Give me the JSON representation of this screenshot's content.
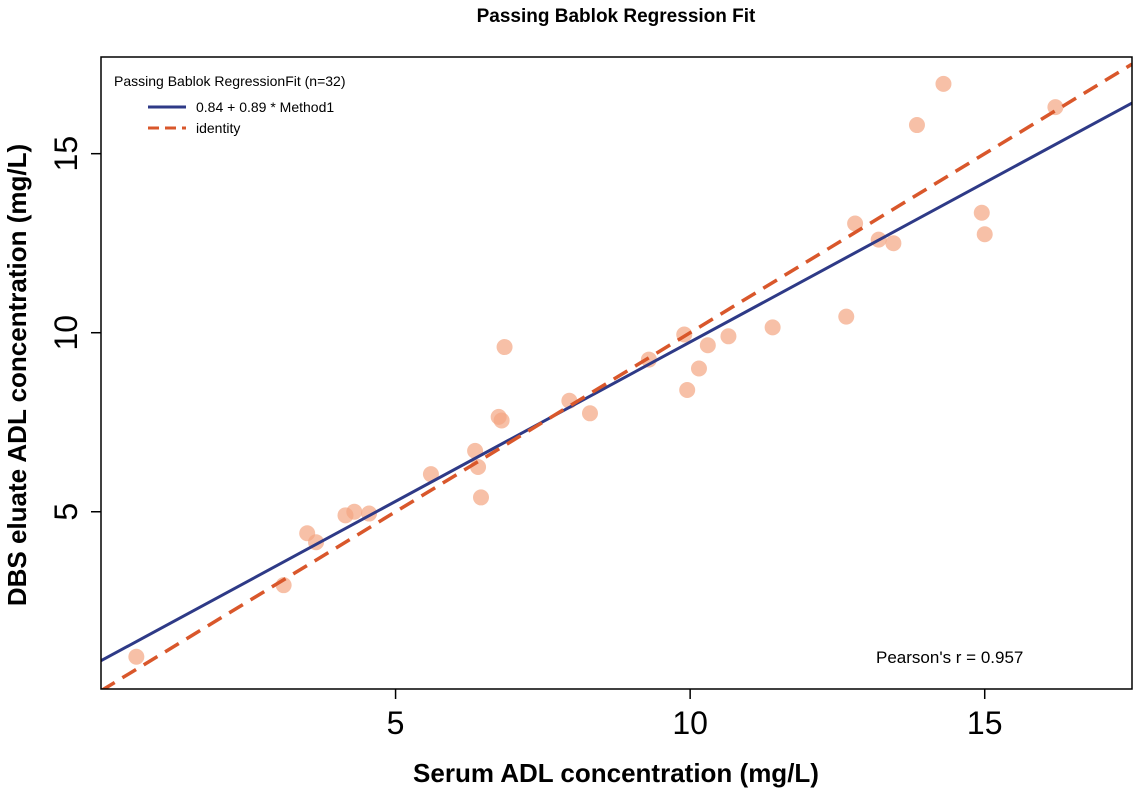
{
  "chart_data": {
    "type": "scatter",
    "title": "Passing Bablok Regression Fit",
    "xlabel": "Serum ADL concentration (mg/L)",
    "ylabel": "DBS eluate ADL concentration (mg/L)",
    "xlim": [
      0,
      17.5
    ],
    "ylim": [
      0.05,
      17.7
    ],
    "xticks": [
      5,
      10,
      15
    ],
    "yticks": [
      5,
      10,
      15
    ],
    "xtick_labels": [
      "5",
      "10",
      "15"
    ],
    "ytick_labels": [
      "5",
      "10",
      "15"
    ],
    "legend": {
      "title": "Passing Bablok RegressionFit (n=32)",
      "position": "top-left",
      "entries": [
        {
          "label": "0.84 + 0.89 * Method1",
          "color": "#2e3a87",
          "style": "solid"
        },
        {
          "label": "identity",
          "color": "#d9572b",
          "style": "dashed"
        }
      ]
    },
    "annotation": "Pearson's r = 0.957",
    "point_color": "#f4a582",
    "lines": {
      "fit": {
        "intercept": 0.84,
        "slope": 0.89
      },
      "identity": {
        "intercept": 0,
        "slope": 1
      }
    },
    "points": [
      {
        "x": 0.6,
        "y": 0.95
      },
      {
        "x": 3.1,
        "y": 2.95
      },
      {
        "x": 3.5,
        "y": 4.4
      },
      {
        "x": 3.65,
        "y": 4.15
      },
      {
        "x": 4.15,
        "y": 4.9
      },
      {
        "x": 4.3,
        "y": 5.0
      },
      {
        "x": 4.55,
        "y": 4.95
      },
      {
        "x": 5.6,
        "y": 6.05
      },
      {
        "x": 6.35,
        "y": 6.7
      },
      {
        "x": 6.4,
        "y": 6.25
      },
      {
        "x": 6.45,
        "y": 5.4
      },
      {
        "x": 6.75,
        "y": 7.65
      },
      {
        "x": 6.8,
        "y": 7.55
      },
      {
        "x": 6.85,
        "y": 9.6
      },
      {
        "x": 7.95,
        "y": 8.1
      },
      {
        "x": 8.3,
        "y": 7.75
      },
      {
        "x": 9.3,
        "y": 9.25
      },
      {
        "x": 9.9,
        "y": 9.95
      },
      {
        "x": 9.95,
        "y": 8.4
      },
      {
        "x": 10.15,
        "y": 9.0
      },
      {
        "x": 10.3,
        "y": 9.65
      },
      {
        "x": 10.65,
        "y": 9.9
      },
      {
        "x": 11.4,
        "y": 10.15
      },
      {
        "x": 12.65,
        "y": 10.45
      },
      {
        "x": 12.8,
        "y": 13.05
      },
      {
        "x": 13.2,
        "y": 12.6
      },
      {
        "x": 13.45,
        "y": 12.5
      },
      {
        "x": 13.85,
        "y": 15.8
      },
      {
        "x": 14.3,
        "y": 16.95
      },
      {
        "x": 14.95,
        "y": 13.35
      },
      {
        "x": 15.0,
        "y": 12.75
      },
      {
        "x": 16.2,
        "y": 16.3
      }
    ]
  }
}
